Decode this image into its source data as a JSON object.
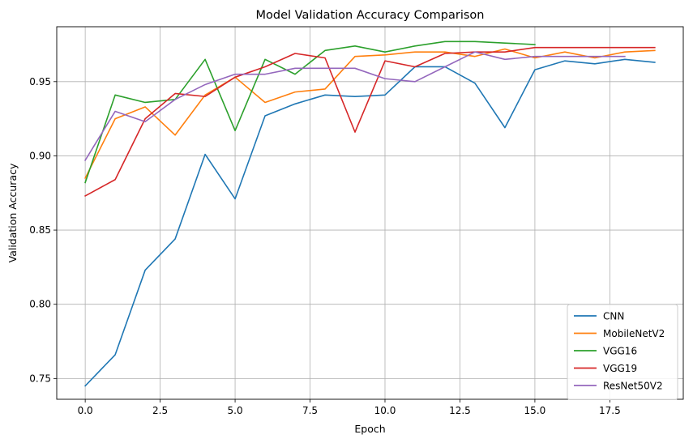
{
  "chart_data": {
    "type": "line",
    "title": "Model Validation Accuracy Comparison",
    "xlabel": "Epoch",
    "ylabel": "Validation Accuracy",
    "xlim": [
      -0.95,
      19.95
    ],
    "ylim": [
      0.736,
      0.987
    ],
    "xticks": [
      0.0,
      2.5,
      5.0,
      7.5,
      10.0,
      12.5,
      15.0,
      17.5
    ],
    "xtick_labels": [
      "0.0",
      "2.5",
      "5.0",
      "7.5",
      "10.0",
      "12.5",
      "15.0",
      "17.5"
    ],
    "yticks": [
      0.75,
      0.8,
      0.85,
      0.9,
      0.95
    ],
    "ytick_labels": [
      "0.75",
      "0.80",
      "0.85",
      "0.90",
      "0.95"
    ],
    "grid": true,
    "legend_position": "lower-right",
    "series": [
      {
        "name": "CNN",
        "color": "#1f77b4",
        "x": [
          0,
          1,
          2,
          3,
          4,
          5,
          6,
          7,
          8,
          9,
          10,
          11,
          12,
          13,
          14,
          15,
          16,
          17,
          18,
          19
        ],
        "values": [
          0.745,
          0.766,
          0.823,
          0.844,
          0.901,
          0.871,
          0.927,
          0.935,
          0.941,
          0.94,
          0.941,
          0.96,
          0.96,
          0.949,
          0.919,
          0.958,
          0.964,
          0.962,
          0.965,
          0.963
        ]
      },
      {
        "name": "MobileNetV2",
        "color": "#ff7f0e",
        "x": [
          0,
          1,
          2,
          3,
          4,
          5,
          6,
          7,
          8,
          9,
          10,
          11,
          12,
          13,
          14,
          15,
          16,
          17,
          18,
          19
        ],
        "values": [
          0.885,
          0.925,
          0.933,
          0.914,
          0.941,
          0.953,
          0.936,
          0.943,
          0.945,
          0.967,
          0.968,
          0.97,
          0.97,
          0.967,
          0.972,
          0.966,
          0.97,
          0.966,
          0.97,
          0.971
        ]
      },
      {
        "name": "VGG16",
        "color": "#2ca02c",
        "x": [
          0,
          1,
          2,
          3,
          4,
          5,
          6,
          7,
          8,
          9,
          10,
          11,
          12,
          13,
          14,
          15
        ],
        "values": [
          0.882,
          0.941,
          0.936,
          0.938,
          0.965,
          0.917,
          0.965,
          0.955,
          0.971,
          0.974,
          0.97,
          0.974,
          0.977,
          0.977,
          0.976,
          0.975
        ]
      },
      {
        "name": "VGG19",
        "color": "#d62728",
        "x": [
          0,
          1,
          2,
          3,
          4,
          5,
          6,
          7,
          8,
          9,
          10,
          11,
          12,
          13,
          14,
          15,
          16,
          17,
          18,
          19
        ],
        "values": [
          0.873,
          0.884,
          0.925,
          0.942,
          0.94,
          0.953,
          0.96,
          0.969,
          0.966,
          0.916,
          0.964,
          0.96,
          0.969,
          0.97,
          0.97,
          0.973,
          0.973,
          0.973,
          0.973,
          0.973
        ]
      },
      {
        "name": "ResNet50V2",
        "color": "#9467bd",
        "x": [
          0,
          1,
          2,
          3,
          4,
          5,
          6,
          7,
          8,
          9,
          10,
          11,
          12,
          13,
          14,
          15,
          16,
          17,
          18
        ],
        "values": [
          0.897,
          0.93,
          0.923,
          0.938,
          0.948,
          0.955,
          0.955,
          0.959,
          0.959,
          0.959,
          0.952,
          0.95,
          0.96,
          0.97,
          0.965,
          0.967,
          0.967,
          0.967,
          0.967
        ]
      }
    ]
  }
}
